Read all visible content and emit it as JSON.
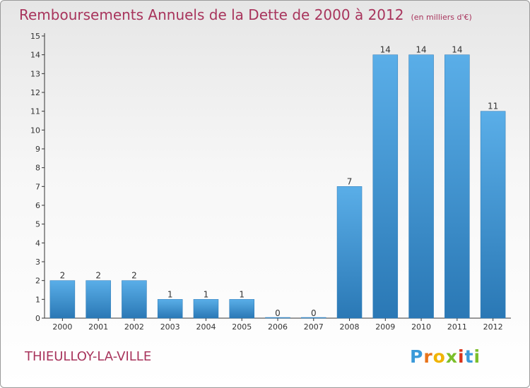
{
  "header": {
    "title": "Remboursements Annuels de la Dette de 2000 à 2012",
    "unit": "(en milliers d'€)"
  },
  "footer": {
    "city": "THIEULLOY-LA-VILLE",
    "logo": [
      "P",
      "r",
      "o",
      "x",
      "i",
      "t",
      "i"
    ]
  },
  "colors": {
    "title": "#a8345c",
    "bar_light": "#5aaee8",
    "bar_dark": "#2a78b5",
    "logo_letters": [
      "#3a9ad9",
      "#e8731a",
      "#f0b400",
      "#7bbf2a",
      "#d9341c",
      "#3a9ad9",
      "#7bbf2a"
    ]
  },
  "chart_data": {
    "type": "bar",
    "title": "Remboursements Annuels de la Dette de 2000 à 2012",
    "unit": "(en milliers d'€)",
    "categories": [
      "2000",
      "2001",
      "2002",
      "2003",
      "2004",
      "2005",
      "2006",
      "2007",
      "2008",
      "2009",
      "2010",
      "2011",
      "2012"
    ],
    "values": [
      2,
      2,
      2,
      1,
      1,
      1,
      0,
      0,
      7,
      14,
      14,
      14,
      11
    ],
    "ylim": [
      0,
      15
    ],
    "yticks": [
      0,
      1,
      2,
      3,
      4,
      5,
      6,
      7,
      8,
      9,
      10,
      11,
      12,
      13,
      14,
      15
    ],
    "grid": false,
    "legend": "none"
  }
}
